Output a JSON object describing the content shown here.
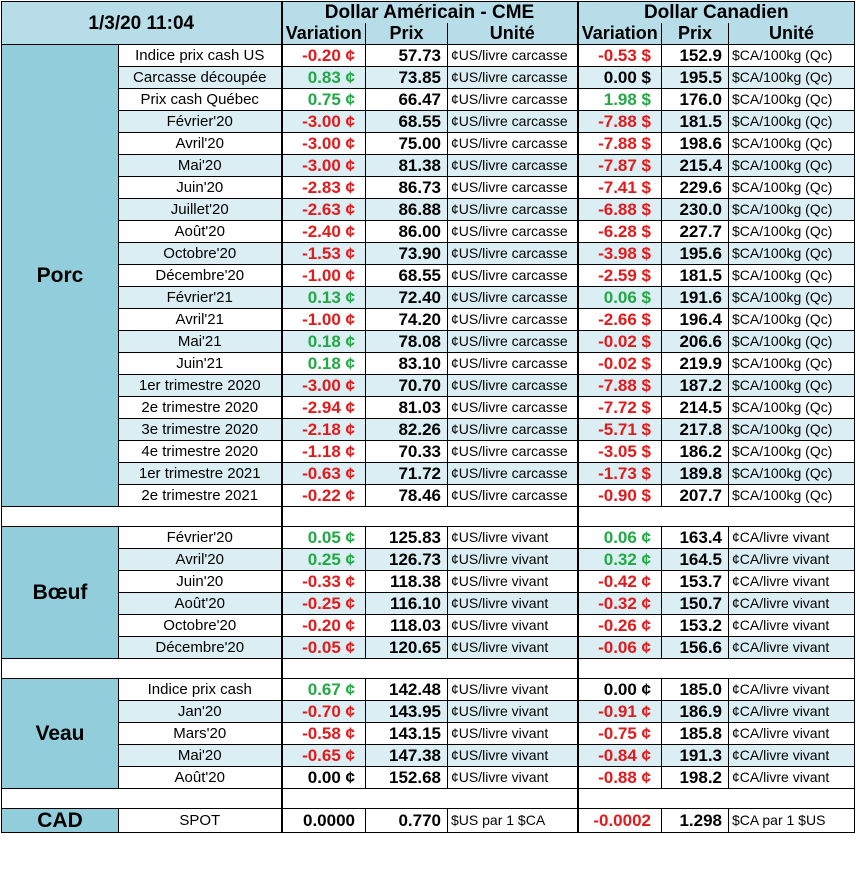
{
  "header": {
    "date": "1/3/20 11:04",
    "usd_title": "Dollar Américain - CME",
    "cad_title": "Dollar Canadien",
    "col_variation": "Variation",
    "col_prix": "Prix",
    "col_unite": "Unité"
  },
  "sections": [
    {
      "name": "Porc",
      "rows": [
        {
          "label": "Indice prix cash US",
          "usd_var": "-0.20 ¢",
          "usd_sign": "neg",
          "usd_price": "57.73",
          "usd_unit": "¢US/livre carcasse",
          "cad_var": "-0.53 $",
          "cad_sign": "neg",
          "cad_price": "152.9",
          "cad_unit": "$CA/100kg (Qc)"
        },
        {
          "label": "Carcasse découpée",
          "usd_var": "0.83 ¢",
          "usd_sign": "pos",
          "usd_price": "73.85",
          "usd_unit": "¢US/livre carcasse",
          "cad_var": "0.00 $",
          "cad_sign": "zero",
          "cad_price": "195.5",
          "cad_unit": "$CA/100kg (Qc)"
        },
        {
          "label": "Prix cash Québec",
          "usd_var": "0.75 ¢",
          "usd_sign": "pos",
          "usd_price": "66.47",
          "usd_unit": "¢US/livre carcasse",
          "cad_var": "1.98 $",
          "cad_sign": "pos",
          "cad_price": "176.0",
          "cad_unit": "$CA/100kg (Qc)"
        },
        {
          "label": "Février'20",
          "usd_var": "-3.00 ¢",
          "usd_sign": "neg",
          "usd_price": "68.55",
          "usd_unit": "¢US/livre carcasse",
          "cad_var": "-7.88 $",
          "cad_sign": "neg",
          "cad_price": "181.5",
          "cad_unit": "$CA/100kg (Qc)"
        },
        {
          "label": "Avril'20",
          "usd_var": "-3.00 ¢",
          "usd_sign": "neg",
          "usd_price": "75.00",
          "usd_unit": "¢US/livre carcasse",
          "cad_var": "-7.88 $",
          "cad_sign": "neg",
          "cad_price": "198.6",
          "cad_unit": "$CA/100kg (Qc)"
        },
        {
          "label": "Mai'20",
          "usd_var": "-3.00 ¢",
          "usd_sign": "neg",
          "usd_price": "81.38",
          "usd_unit": "¢US/livre carcasse",
          "cad_var": "-7.87 $",
          "cad_sign": "neg",
          "cad_price": "215.4",
          "cad_unit": "$CA/100kg (Qc)"
        },
        {
          "label": "Juin'20",
          "usd_var": "-2.83 ¢",
          "usd_sign": "neg",
          "usd_price": "86.73",
          "usd_unit": "¢US/livre carcasse",
          "cad_var": "-7.41 $",
          "cad_sign": "neg",
          "cad_price": "229.6",
          "cad_unit": "$CA/100kg (Qc)"
        },
        {
          "label": "Juillet'20",
          "usd_var": "-2.63 ¢",
          "usd_sign": "neg",
          "usd_price": "86.88",
          "usd_unit": "¢US/livre carcasse",
          "cad_var": "-6.88 $",
          "cad_sign": "neg",
          "cad_price": "230.0",
          "cad_unit": "$CA/100kg (Qc)"
        },
        {
          "label": "Août'20",
          "usd_var": "-2.40 ¢",
          "usd_sign": "neg",
          "usd_price": "86.00",
          "usd_unit": "¢US/livre carcasse",
          "cad_var": "-6.28 $",
          "cad_sign": "neg",
          "cad_price": "227.7",
          "cad_unit": "$CA/100kg (Qc)"
        },
        {
          "label": "Octobre'20",
          "usd_var": "-1.53 ¢",
          "usd_sign": "neg",
          "usd_price": "73.90",
          "usd_unit": "¢US/livre carcasse",
          "cad_var": "-3.98 $",
          "cad_sign": "neg",
          "cad_price": "195.6",
          "cad_unit": "$CA/100kg (Qc)"
        },
        {
          "label": "Décembre'20",
          "usd_var": "-1.00 ¢",
          "usd_sign": "neg",
          "usd_price": "68.55",
          "usd_unit": "¢US/livre carcasse",
          "cad_var": "-2.59 $",
          "cad_sign": "neg",
          "cad_price": "181.5",
          "cad_unit": "$CA/100kg (Qc)"
        },
        {
          "label": "Février'21",
          "usd_var": "0.13 ¢",
          "usd_sign": "pos",
          "usd_price": "72.40",
          "usd_unit": "¢US/livre carcasse",
          "cad_var": "0.06 $",
          "cad_sign": "pos",
          "cad_price": "191.6",
          "cad_unit": "$CA/100kg (Qc)"
        },
        {
          "label": "Avril'21",
          "usd_var": "-1.00 ¢",
          "usd_sign": "neg",
          "usd_price": "74.20",
          "usd_unit": "¢US/livre carcasse",
          "cad_var": "-2.66 $",
          "cad_sign": "neg",
          "cad_price": "196.4",
          "cad_unit": "$CA/100kg (Qc)"
        },
        {
          "label": "Mai'21",
          "usd_var": "0.18 ¢",
          "usd_sign": "pos",
          "usd_price": "78.08",
          "usd_unit": "¢US/livre carcasse",
          "cad_var": "-0.02 $",
          "cad_sign": "neg",
          "cad_price": "206.6",
          "cad_unit": "$CA/100kg (Qc)"
        },
        {
          "label": "Juin'21",
          "usd_var": "0.18 ¢",
          "usd_sign": "pos",
          "usd_price": "83.10",
          "usd_unit": "¢US/livre carcasse",
          "cad_var": "-0.02 $",
          "cad_sign": "neg",
          "cad_price": "219.9",
          "cad_unit": "$CA/100kg (Qc)"
        },
        {
          "label": "1er trimestre 2020",
          "usd_var": "-3.00 ¢",
          "usd_sign": "neg",
          "usd_price": "70.70",
          "usd_unit": "¢US/livre carcasse",
          "cad_var": "-7.88 $",
          "cad_sign": "neg",
          "cad_price": "187.2",
          "cad_unit": "$CA/100kg (Qc)"
        },
        {
          "label": "2e trimestre 2020",
          "usd_var": "-2.94 ¢",
          "usd_sign": "neg",
          "usd_price": "81.03",
          "usd_unit": "¢US/livre carcasse",
          "cad_var": "-7.72 $",
          "cad_sign": "neg",
          "cad_price": "214.5",
          "cad_unit": "$CA/100kg (Qc)"
        },
        {
          "label": "3e trimestre 2020",
          "usd_var": "-2.18 ¢",
          "usd_sign": "neg",
          "usd_price": "82.26",
          "usd_unit": "¢US/livre carcasse",
          "cad_var": "-5.71 $",
          "cad_sign": "neg",
          "cad_price": "217.8",
          "cad_unit": "$CA/100kg (Qc)"
        },
        {
          "label": "4e trimestre 2020",
          "usd_var": "-1.18 ¢",
          "usd_sign": "neg",
          "usd_price": "70.33",
          "usd_unit": "¢US/livre carcasse",
          "cad_var": "-3.05 $",
          "cad_sign": "neg",
          "cad_price": "186.2",
          "cad_unit": "$CA/100kg (Qc)"
        },
        {
          "label": "1er trimestre 2021",
          "usd_var": "-0.63 ¢",
          "usd_sign": "neg",
          "usd_price": "71.72",
          "usd_unit": "¢US/livre carcasse",
          "cad_var": "-1.73 $",
          "cad_sign": "neg",
          "cad_price": "189.8",
          "cad_unit": "$CA/100kg (Qc)"
        },
        {
          "label": "2e trimestre 2021",
          "usd_var": "-0.22 ¢",
          "usd_sign": "neg",
          "usd_price": "78.46",
          "usd_unit": "¢US/livre carcasse",
          "cad_var": "-0.90 $",
          "cad_sign": "neg",
          "cad_price": "207.7",
          "cad_unit": "$CA/100kg (Qc)"
        }
      ]
    },
    {
      "name": "Bœuf",
      "rows": [
        {
          "label": "Février'20",
          "usd_var": "0.05 ¢",
          "usd_sign": "pos",
          "usd_price": "125.83",
          "usd_unit": "¢US/livre vivant",
          "cad_var": "0.06 ¢",
          "cad_sign": "pos",
          "cad_price": "163.4",
          "cad_unit": "¢CA/livre vivant"
        },
        {
          "label": "Avril'20",
          "usd_var": "0.25 ¢",
          "usd_sign": "pos",
          "usd_price": "126.73",
          "usd_unit": "¢US/livre vivant",
          "cad_var": "0.32 ¢",
          "cad_sign": "pos",
          "cad_price": "164.5",
          "cad_unit": "¢CA/livre vivant"
        },
        {
          "label": "Juin'20",
          "usd_var": "-0.33 ¢",
          "usd_sign": "neg",
          "usd_price": "118.38",
          "usd_unit": "¢US/livre vivant",
          "cad_var": "-0.42 ¢",
          "cad_sign": "neg",
          "cad_price": "153.7",
          "cad_unit": "¢CA/livre vivant"
        },
        {
          "label": "Août'20",
          "usd_var": "-0.25 ¢",
          "usd_sign": "neg",
          "usd_price": "116.10",
          "usd_unit": "¢US/livre vivant",
          "cad_var": "-0.32 ¢",
          "cad_sign": "neg",
          "cad_price": "150.7",
          "cad_unit": "¢CA/livre vivant"
        },
        {
          "label": "Octobre'20",
          "usd_var": "-0.20 ¢",
          "usd_sign": "neg",
          "usd_price": "118.03",
          "usd_unit": "¢US/livre vivant",
          "cad_var": "-0.26 ¢",
          "cad_sign": "neg",
          "cad_price": "153.2",
          "cad_unit": "¢CA/livre vivant"
        },
        {
          "label": "Décembre'20",
          "usd_var": "-0.05 ¢",
          "usd_sign": "neg",
          "usd_price": "120.65",
          "usd_unit": "¢US/livre vivant",
          "cad_var": "-0.06 ¢",
          "cad_sign": "neg",
          "cad_price": "156.6",
          "cad_unit": "¢CA/livre vivant"
        }
      ]
    },
    {
      "name": "Veau",
      "rows": [
        {
          "label": "Indice prix cash",
          "usd_var": "0.67 ¢",
          "usd_sign": "pos",
          "usd_price": "142.48",
          "usd_unit": "¢US/livre vivant",
          "cad_var": "0.00 ¢",
          "cad_sign": "zero",
          "cad_price": "185.0",
          "cad_unit": "¢CA/livre vivant"
        },
        {
          "label": "Jan'20",
          "usd_var": "-0.70 ¢",
          "usd_sign": "neg",
          "usd_price": "143.95",
          "usd_unit": "¢US/livre vivant",
          "cad_var": "-0.91 ¢",
          "cad_sign": "neg",
          "cad_price": "186.9",
          "cad_unit": "¢CA/livre vivant"
        },
        {
          "label": "Mars'20",
          "usd_var": "-0.58 ¢",
          "usd_sign": "neg",
          "usd_price": "143.15",
          "usd_unit": "¢US/livre vivant",
          "cad_var": "-0.75 ¢",
          "cad_sign": "neg",
          "cad_price": "185.8",
          "cad_unit": "¢CA/livre vivant"
        },
        {
          "label": "Mai'20",
          "usd_var": "-0.65 ¢",
          "usd_sign": "neg",
          "usd_price": "147.38",
          "usd_unit": "¢US/livre vivant",
          "cad_var": "-0.84 ¢",
          "cad_sign": "neg",
          "cad_price": "191.3",
          "cad_unit": "¢CA/livre vivant"
        },
        {
          "label": "Août'20",
          "usd_var": "0.00 ¢",
          "usd_sign": "zero",
          "usd_price": "152.68",
          "usd_unit": "¢US/livre vivant",
          "cad_var": "-0.88 ¢",
          "cad_sign": "neg",
          "cad_price": "198.2",
          "cad_unit": "¢CA/livre vivant"
        }
      ]
    }
  ],
  "cad": {
    "name": "CAD",
    "label": "SPOT",
    "usd_var": "0.0000",
    "usd_sign": "zero",
    "usd_price": "0.770",
    "usd_unit": "$US par 1 $CA",
    "cad_var": "-0.0002",
    "cad_sign": "neg",
    "cad_price": "1.298",
    "cad_unit": "$CA par 1 $US"
  }
}
